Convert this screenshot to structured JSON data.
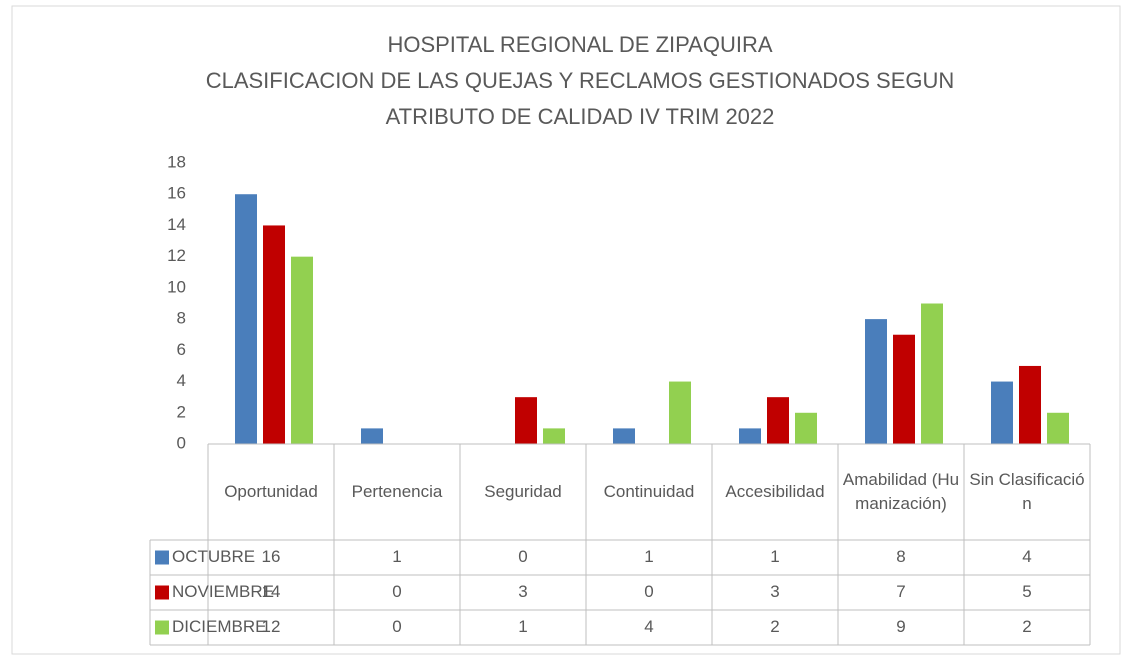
{
  "chart_data": {
    "type": "bar",
    "title": [
      "HOSPITAL REGIONAL DE ZIPAQUIRA",
      "CLASIFICACION DE LAS QUEJAS Y RECLAMOS GESTIONADOS SEGUN",
      "ATRIBUTO DE CALIDAD IV TRIM 2022"
    ],
    "categories": [
      "Oportunidad",
      "Pertenencia",
      "Seguridad",
      "Continuidad",
      "Accesibilidad",
      "Amabilidad (Humanización)",
      "Sin Clasificación"
    ],
    "series": [
      {
        "name": "OCTUBRE",
        "color": "#4a7ebb",
        "values": [
          16,
          1,
          0,
          1,
          1,
          8,
          4
        ]
      },
      {
        "name": "NOVIEMBRE",
        "color": "#c00000",
        "values": [
          14,
          0,
          3,
          0,
          3,
          7,
          5
        ]
      },
      {
        "name": "DICIEMBRE",
        "color": "#92d050",
        "values": [
          12,
          0,
          1,
          4,
          2,
          9,
          2
        ]
      }
    ],
    "ylim": [
      0,
      18
    ],
    "yticks": [
      0,
      2,
      4,
      6,
      8,
      10,
      12,
      14,
      16,
      18
    ],
    "grid": false,
    "data_table": true
  }
}
